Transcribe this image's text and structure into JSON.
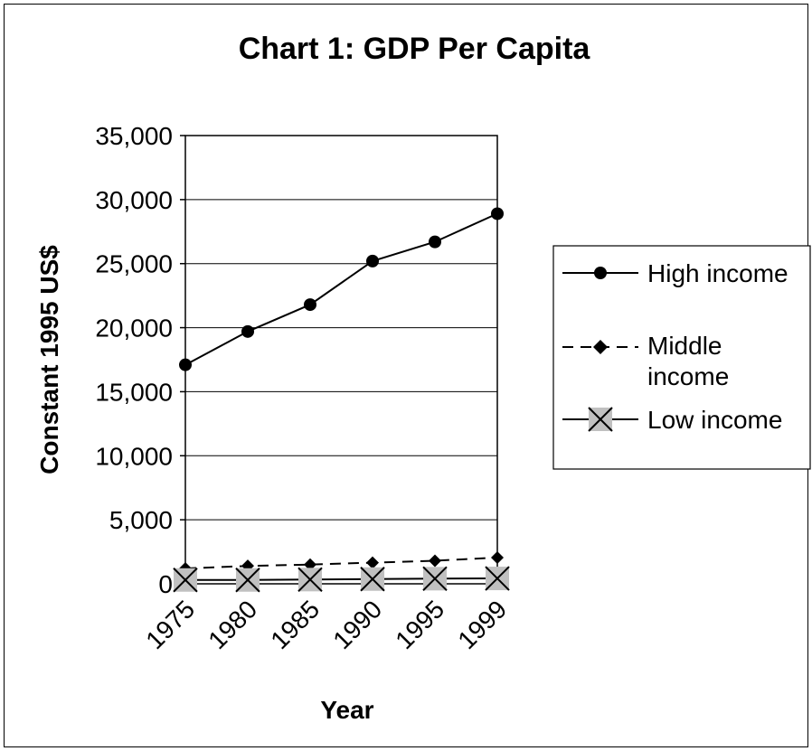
{
  "chart_data": {
    "type": "line",
    "title": "Chart 1: GDP Per Capita",
    "xlabel": "Year",
    "ylabel": "Constant 1995 US$",
    "categories": [
      "1975",
      "1980",
      "1985",
      "1990",
      "1995",
      "1999"
    ],
    "ylim": [
      0,
      35000
    ],
    "yticks": [
      "0",
      "5,000",
      "10,000",
      "15,000",
      "20,000",
      "25,000",
      "30,000",
      "35,000"
    ],
    "grid": "horizontal",
    "legend_position": "right",
    "series": [
      {
        "name": "High income",
        "values": [
          17100,
          19700,
          21800,
          25200,
          26700,
          28900
        ],
        "line": "solid",
        "marker": "circle",
        "color": "#000000"
      },
      {
        "name": "Middle income",
        "values": [
          1200,
          1400,
          1500,
          1650,
          1800,
          2050
        ],
        "line": "dashed",
        "marker": "diamond",
        "color": "#000000"
      },
      {
        "name": "Low income",
        "values": [
          300,
          300,
          330,
          370,
          400,
          420
        ],
        "line": "solid",
        "marker": "x-box",
        "color": "#000000"
      }
    ],
    "legend_labels": {
      "high": "High income",
      "middle_line1": "Middle",
      "middle_line2": "income",
      "low": "Low income"
    }
  }
}
